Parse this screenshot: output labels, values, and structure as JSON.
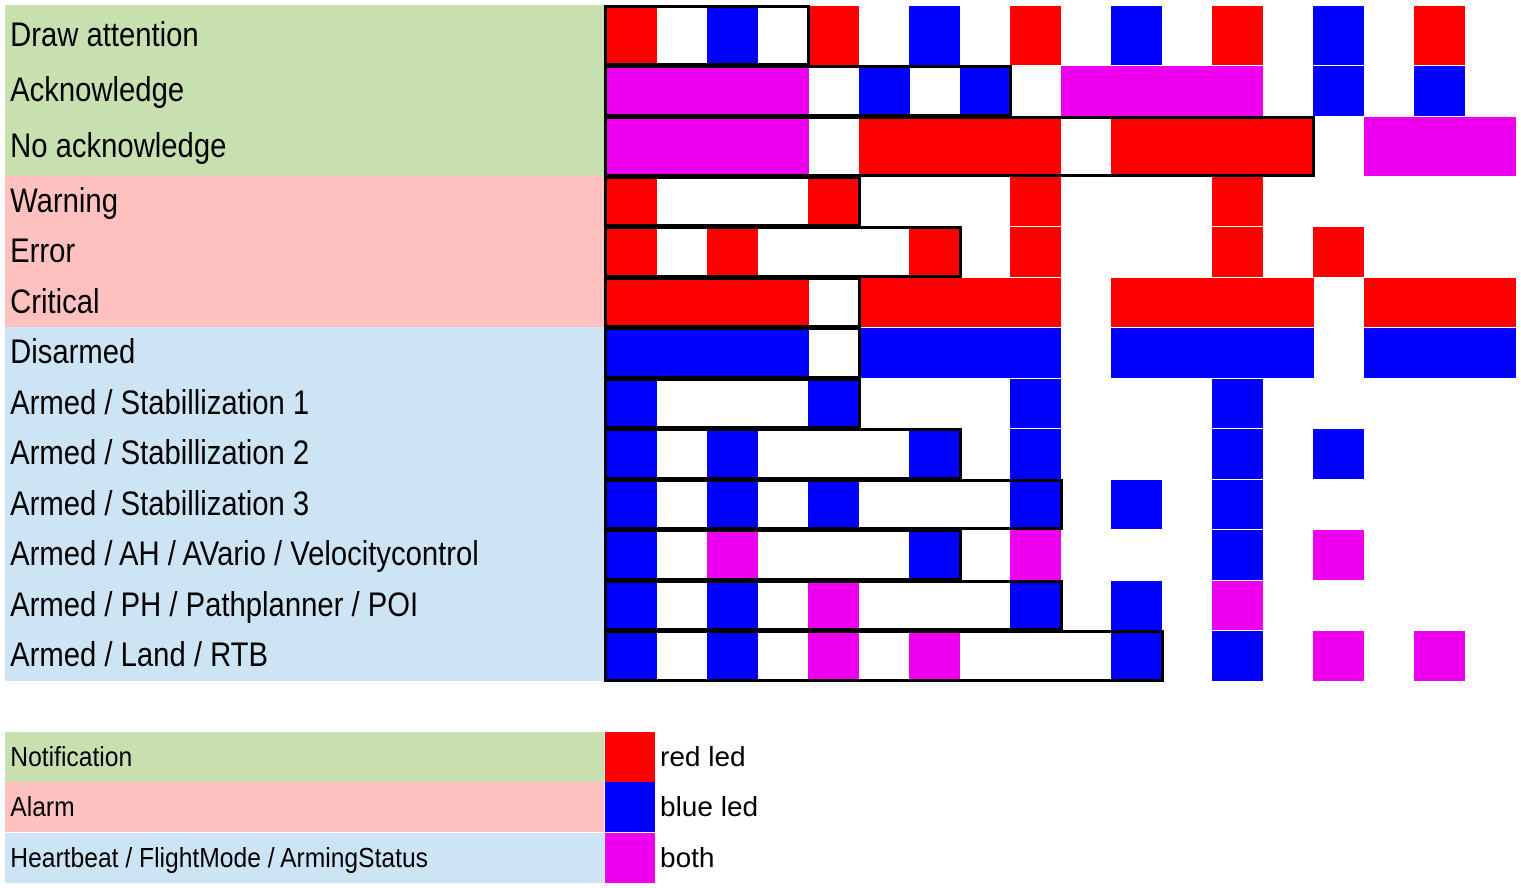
{
  "colors": {
    "notification_bg": "#c8e0b0",
    "alarm_bg": "#ffc0c0",
    "status_bg": "#cce4f4",
    "red": "#ff0000",
    "blue": "#0000ff",
    "both": "#ee00ee"
  },
  "rows": [
    {
      "label": "Draw attention",
      "group": "notification",
      "cells": "R.B.R.B.R.B.R.B.R.",
      "cycle": 4
    },
    {
      "label": "Acknowledge",
      "group": "notification",
      "cells": "PPPP.B.B.PPPP.B.B.",
      "cycle": 8
    },
    {
      "label": "No acknowledge",
      "group": "notification",
      "cells": "PPPP.RRRR.RRRR.PPP",
      "cycle": 14
    },
    {
      "label": "Warning",
      "group": "alarm",
      "cells": "R...R...R...R.....",
      "cycle": 5
    },
    {
      "label": "Error",
      "group": "alarm",
      "cells": "R.R...R.R...R.R...",
      "cycle": 7
    },
    {
      "label": "Critical",
      "group": "alarm",
      "cells": "RRRR.RRRR.RRRR.RRR",
      "cycle": 5
    },
    {
      "label": "Disarmed",
      "group": "status",
      "cells": "BBBB.BBBB.BBBB.BBB",
      "cycle": 5
    },
    {
      "label": "Armed / Stabillization 1",
      "group": "status",
      "cells": "B...B...B...B.....",
      "cycle": 5
    },
    {
      "label": "Armed / Stabillization 2",
      "group": "status",
      "cells": "B.B...B.B...B.B...",
      "cycle": 7
    },
    {
      "label": "Armed / Stabillization 3",
      "group": "status",
      "cells": "B.B.B...B.B.B.....",
      "cycle": 9
    },
    {
      "label": "Armed / AH / AVario / Velocitycontrol",
      "group": "status",
      "cells": "B.P...B.P...B.P...",
      "cycle": 7
    },
    {
      "label": "Armed / PH / Pathplanner / POI",
      "group": "status",
      "cells": "B.B.P...B.B.P.....",
      "cycle": 9
    },
    {
      "label": "Armed / Land / RTB",
      "group": "status",
      "cells": "B.B.P.P...B.B.P.P.",
      "cycle": 11
    }
  ],
  "legend": [
    {
      "label": "Notification",
      "group": "notification",
      "swatch": "red",
      "text": "red led"
    },
    {
      "label": "Alarm",
      "group": "alarm",
      "swatch": "blue",
      "text": "blue led"
    },
    {
      "label": "Heartbeat / FlightMode / ArmingStatus",
      "group": "status",
      "swatch": "both",
      "text": "both"
    }
  ]
}
